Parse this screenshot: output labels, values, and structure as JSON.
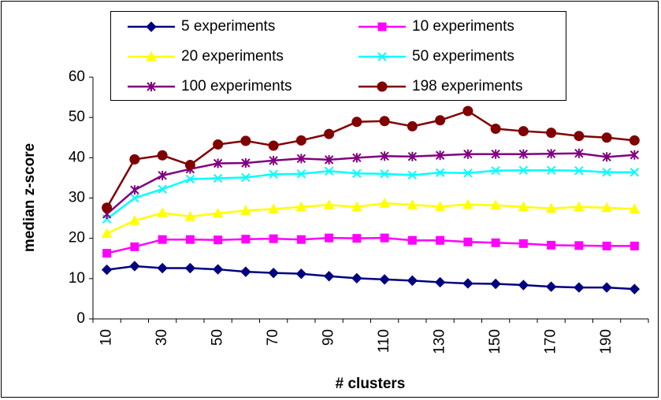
{
  "chart_data": {
    "type": "line",
    "x_label": "# clusters",
    "y_label": "median z-score",
    "categories": [
      "10",
      null,
      "30",
      null,
      "50",
      null,
      "70",
      null,
      "90",
      null,
      "110",
      null,
      "130",
      null,
      "150",
      null,
      "170",
      null,
      "190",
      null
    ],
    "ylim": [
      0,
      60
    ],
    "yticks": [
      0,
      10,
      20,
      30,
      40,
      50,
      60
    ],
    "grid": false,
    "legend": "top",
    "series": [
      {
        "name": "5 experiments",
        "color": "#000080",
        "marker": "diamond",
        "values": [
          12.2,
          13.1,
          12.6,
          12.6,
          12.3,
          11.7,
          11.4,
          11.2,
          10.6,
          10.1,
          9.8,
          9.5,
          9.1,
          8.8,
          8.7,
          8.4,
          8.0,
          7.8,
          7.8,
          7.4
        ]
      },
      {
        "name": "10 experiments",
        "color": "#ff00ff",
        "marker": "square",
        "values": [
          16.3,
          17.9,
          19.7,
          19.7,
          19.6,
          19.8,
          19.9,
          19.7,
          20.1,
          20.0,
          20.1,
          19.5,
          19.5,
          19.1,
          18.9,
          18.7,
          18.3,
          18.2,
          18.1,
          18.1
        ]
      },
      {
        "name": "20 experiments",
        "color": "#ffff00",
        "marker": "triangle",
        "values": [
          21.2,
          24.4,
          26.3,
          25.4,
          26.2,
          26.9,
          27.3,
          27.8,
          28.3,
          27.8,
          28.7,
          28.3,
          27.9,
          28.4,
          28.2,
          27.8,
          27.4,
          27.8,
          27.6,
          27.3
        ]
      },
      {
        "name": "50 experiments",
        "color": "#00ffff",
        "marker": "x",
        "values": [
          24.8,
          30.0,
          32.2,
          34.7,
          34.9,
          35.1,
          35.9,
          36.0,
          36.7,
          36.1,
          36.0,
          35.7,
          36.3,
          36.2,
          36.8,
          36.9,
          36.9,
          36.8,
          36.4,
          36.4
        ]
      },
      {
        "name": "100 experiments",
        "color": "#800080",
        "marker": "star",
        "values": [
          26.0,
          32.0,
          35.6,
          37.2,
          38.6,
          38.7,
          39.3,
          39.8,
          39.5,
          40.0,
          40.4,
          40.3,
          40.6,
          40.9,
          40.9,
          40.9,
          41.0,
          41.1,
          40.2,
          40.7
        ]
      },
      {
        "name": "198 experiments",
        "color": "#800000",
        "marker": "circle",
        "values": [
          27.6,
          39.6,
          40.6,
          38.2,
          43.3,
          44.2,
          43.0,
          44.3,
          45.9,
          48.9,
          49.1,
          47.8,
          49.3,
          51.6,
          47.2,
          46.6,
          46.2,
          45.4,
          45.0,
          44.3
        ]
      }
    ]
  }
}
